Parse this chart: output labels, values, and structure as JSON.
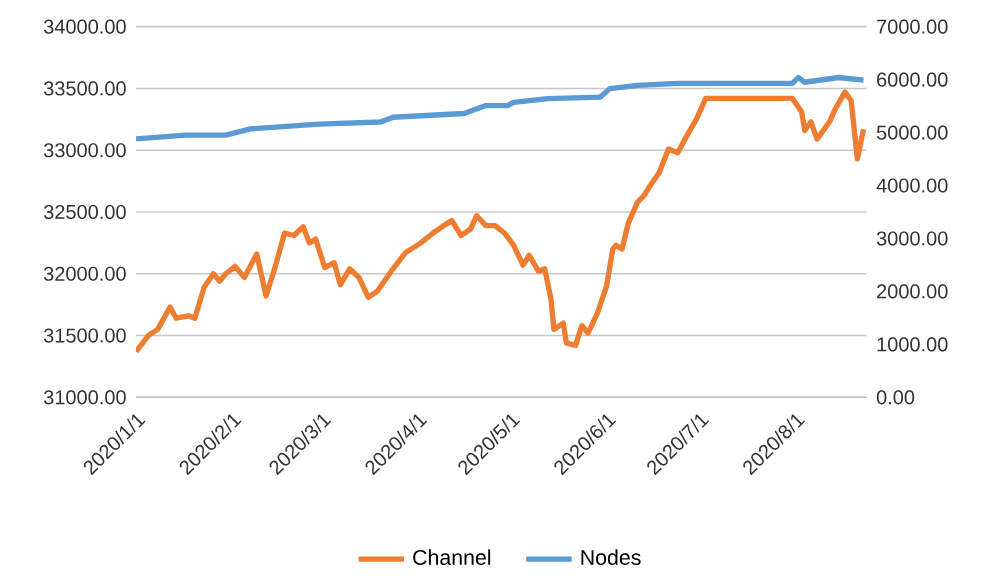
{
  "chart_data": {
    "type": "line",
    "xlim": [
      "2020-01-01",
      "2020-08-24"
    ],
    "xticks": [
      {
        "value": "2020-01-01",
        "label": "2020/1/1"
      },
      {
        "value": "2020-02-01",
        "label": "2020/2/1"
      },
      {
        "value": "2020-03-01",
        "label": "2020/3/1"
      },
      {
        "value": "2020-04-01",
        "label": "2020/4/1"
      },
      {
        "value": "2020-05-01",
        "label": "2020/5/1"
      },
      {
        "value": "2020-06-01",
        "label": "2020/6/1"
      },
      {
        "value": "2020-07-01",
        "label": "2020/7/1"
      },
      {
        "value": "2020-08-01",
        "label": "2020/8/1"
      }
    ],
    "ylim": [
      31000,
      34000
    ],
    "yticks": [
      {
        "value": 31000,
        "label": "31000.00"
      },
      {
        "value": 31500,
        "label": "31500.00"
      },
      {
        "value": 32000,
        "label": "32000.00"
      },
      {
        "value": 32500,
        "label": "32500.00"
      },
      {
        "value": 33000,
        "label": "33000.00"
      },
      {
        "value": 33500,
        "label": "33500.00"
      },
      {
        "value": 34000,
        "label": "34000.00"
      }
    ],
    "y2lim": [
      0,
      7000
    ],
    "y2ticks": [
      {
        "value": 0,
        "label": "0.00"
      },
      {
        "value": 1000,
        "label": "1000.00"
      },
      {
        "value": 2000,
        "label": "2000.00"
      },
      {
        "value": 3000,
        "label": "3000.00"
      },
      {
        "value": 4000,
        "label": "4000.00"
      },
      {
        "value": 5000,
        "label": "5000.00"
      },
      {
        "value": 6000,
        "label": "6000.00"
      },
      {
        "value": 7000,
        "label": "7000.00"
      }
    ],
    "grid": "y",
    "legend": "bottom",
    "marker": "none",
    "line_style": "solid",
    "series": [
      {
        "name": "Channel",
        "color": "#ed7d31",
        "x": [
          "2020-01-01",
          "2020-01-05",
          "2020-01-08",
          "2020-01-12",
          "2020-01-14",
          "2020-01-18",
          "2020-01-20",
          "2020-01-23",
          "2020-01-26",
          "2020-01-28",
          "2020-01-30",
          "2020-02-02",
          "2020-02-05",
          "2020-02-09",
          "2020-02-12",
          "2020-02-15",
          "2020-02-18",
          "2020-02-21",
          "2020-02-24",
          "2020-02-26",
          "2020-02-28",
          "2020-03-02",
          "2020-03-05",
          "2020-03-07",
          "2020-03-10",
          "2020-03-13",
          "2020-03-16",
          "2020-03-19",
          "2020-03-24",
          "2020-03-28",
          "2020-04-02",
          "2020-04-06",
          "2020-04-10",
          "2020-04-12",
          "2020-04-15",
          "2020-04-18",
          "2020-04-20",
          "2020-04-23",
          "2020-04-26",
          "2020-04-29",
          "2020-05-02",
          "2020-05-05",
          "2020-05-07",
          "2020-05-10",
          "2020-05-12",
          "2020-05-14",
          "2020-05-15",
          "2020-05-18",
          "2020-05-19",
          "2020-05-22",
          "2020-05-24",
          "2020-05-26",
          "2020-05-29",
          "2020-06-01",
          "2020-06-03",
          "2020-06-04",
          "2020-06-06",
          "2020-06-08",
          "2020-06-11",
          "2020-06-13",
          "2020-06-15",
          "2020-06-18",
          "2020-06-21",
          "2020-06-24",
          "2020-06-27",
          "2020-06-30",
          "2020-07-03",
          "2020-07-31",
          "2020-08-03",
          "2020-08-04",
          "2020-08-06",
          "2020-08-08",
          "2020-08-12",
          "2020-08-14",
          "2020-08-17",
          "2020-08-19",
          "2020-08-21",
          "2020-08-23"
        ],
        "values": [
          31370,
          31500,
          31550,
          31730,
          31640,
          31660,
          31640,
          31890,
          32000,
          31940,
          32000,
          32060,
          31970,
          32160,
          31820,
          32060,
          32330,
          32310,
          32380,
          32250,
          32280,
          32050,
          32090,
          31910,
          32040,
          31970,
          31810,
          31860,
          32040,
          32170,
          32250,
          32330,
          32400,
          32430,
          32310,
          32360,
          32470,
          32390,
          32390,
          32330,
          32230,
          32070,
          32150,
          32020,
          32040,
          31800,
          31550,
          31600,
          31440,
          31420,
          31580,
          31520,
          31680,
          31900,
          32200,
          32230,
          32200,
          32410,
          32580,
          32630,
          32710,
          32820,
          33010,
          32980,
          33120,
          33250,
          33420,
          33420,
          33310,
          33160,
          33230,
          33090,
          33230,
          33340,
          33470,
          33400,
          32930,
          33170
        ]
      },
      {
        "name": "Nodes",
        "color": "#5b9bd5",
        "axis": "y2",
        "x": [
          "2020-01-01",
          "2020-01-17",
          "2020-01-30",
          "2020-02-07",
          "2020-02-29",
          "2020-03-20",
          "2020-03-24",
          "2020-04-16",
          "2020-04-23",
          "2020-04-30",
          "2020-05-02",
          "2020-05-13",
          "2020-05-30",
          "2020-06-02",
          "2020-06-11",
          "2020-06-24",
          "2020-07-31",
          "2020-08-02",
          "2020-08-04",
          "2020-08-15",
          "2020-08-23"
        ],
        "values": [
          4880,
          4950,
          4950,
          5070,
          5160,
          5200,
          5290,
          5360,
          5510,
          5510,
          5570,
          5640,
          5670,
          5830,
          5890,
          5930,
          5930,
          6040,
          5950,
          6040,
          5990
        ]
      }
    ]
  }
}
